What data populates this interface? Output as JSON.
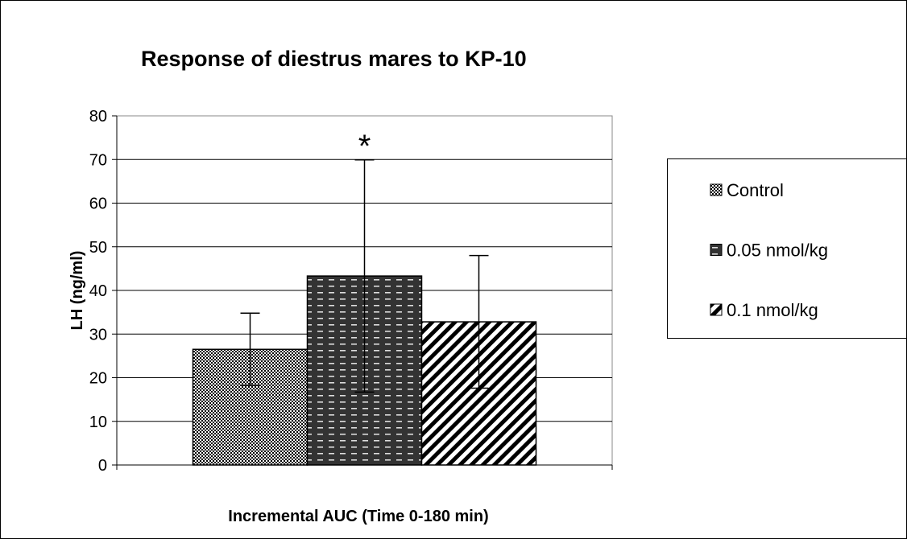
{
  "chart_data": {
    "type": "bar",
    "title": "Response of diestrus mares to KP-10",
    "y_label": "LH (ng/ml)",
    "x_label": "Incremental AUC (Time 0-180 min)",
    "categories": [
      null
    ],
    "series": [
      {
        "name": "Control",
        "color": "#000000",
        "pattern": "checker",
        "values": [
          26.5
        ],
        "errors": [
          8.3
        ]
      },
      {
        "name": "0.05 nmol/kg",
        "color": "#000000",
        "pattern": "dash",
        "values": [
          43.3
        ],
        "errors": [
          26.6
        ]
      },
      {
        "name": "0.1 nmol/kg",
        "color": "#000000",
        "pattern": "hatch",
        "values": [
          32.8
        ],
        "errors": [
          15.2
        ]
      }
    ],
    "annotations": [
      {
        "text": "*",
        "series": 1
      }
    ],
    "ylim": [
      0,
      80
    ],
    "yticks": [
      0,
      10,
      20,
      30,
      40,
      50,
      60,
      70,
      80
    ],
    "grid": true,
    "legend": "right"
  }
}
